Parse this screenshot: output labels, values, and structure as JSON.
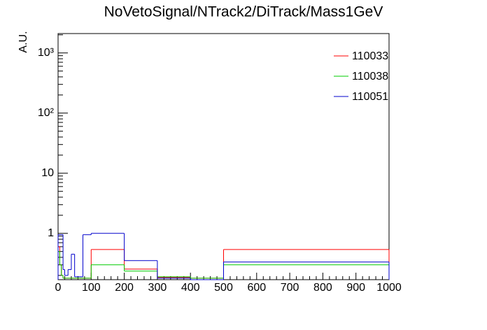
{
  "chart_data": {
    "type": "histogram",
    "title": "NoVetoSignal/NTrack2/DiTrack/Mass1GeV",
    "ylabel": "A.U.",
    "bins": [
      0,
      5,
      10,
      15,
      20,
      30,
      40,
      50,
      75,
      100,
      200,
      300,
      400,
      500,
      1000
    ],
    "series": [
      {
        "name": "110033",
        "color": "#ff0000",
        "values": [
          0.6,
          0.3,
          0.2,
          0.18,
          0.18,
          0.18,
          0.18,
          0.18,
          0.18,
          0.54,
          0.255,
          0.185,
          0.18,
          0.54
        ]
      },
      {
        "name": "110038",
        "color": "#00cc00",
        "values": [
          0.5,
          0.3,
          0.2,
          0.18,
          0.18,
          0.18,
          0.18,
          0.18,
          0.18,
          0.3,
          0.236,
          0.19,
          0.18,
          0.3
        ]
      },
      {
        "name": "110051",
        "color": "#0000cc",
        "values": [
          0.95,
          0.95,
          0.95,
          0.25,
          0.2,
          0.25,
          0.45,
          0.19,
          0.95,
          1,
          0.352,
          0.18,
          0.17,
          0.334
        ]
      }
    ],
    "xlim": [
      0,
      1000
    ],
    "xticks": [
      0,
      100,
      200,
      300,
      400,
      500,
      600,
      700,
      800,
      900,
      1000
    ],
    "ylim": [
      0.17,
      2100
    ],
    "yticks": [
      1,
      10,
      {
        "value": 100,
        "label": "10²"
      },
      {
        "value": 1000,
        "label": "10³"
      }
    ],
    "log_y": true,
    "legend": "upper-right"
  }
}
